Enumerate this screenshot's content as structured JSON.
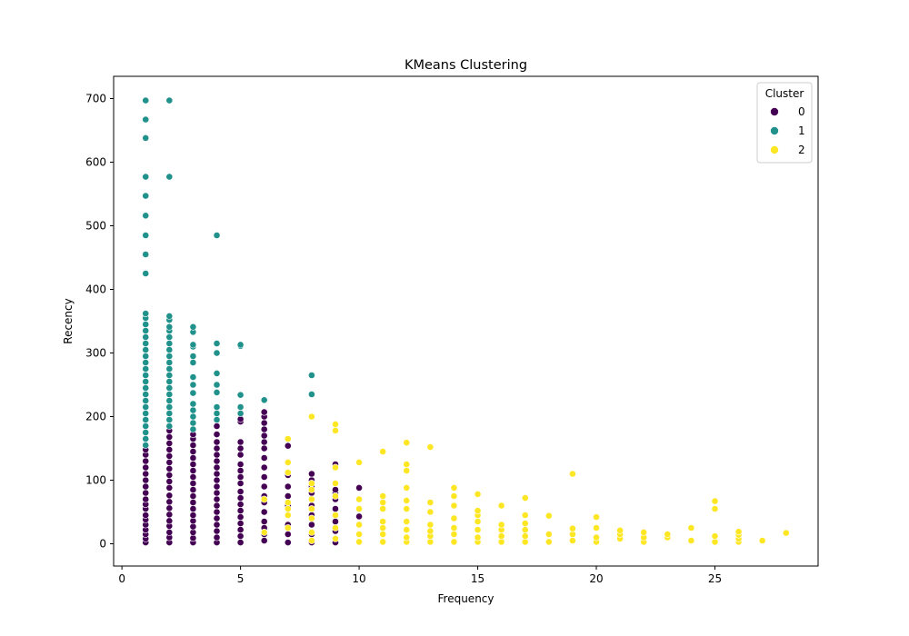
{
  "chart_data": {
    "type": "scatter",
    "title": "KMeans Clustering",
    "xlabel": "Frequency",
    "ylabel": "Recency",
    "xlim": [
      -0.35,
      29.35
    ],
    "ylim": [
      -35,
      735
    ],
    "xticks": [
      0,
      5,
      10,
      15,
      20,
      25
    ],
    "yticks": [
      0,
      100,
      200,
      300,
      400,
      500,
      600,
      700
    ],
    "grid": false,
    "legend": {
      "title": "Cluster",
      "placement": "top-right"
    },
    "series": [
      {
        "name": "0",
        "color": "#440154",
        "points": [
          [
            1,
            2
          ],
          [
            1,
            8
          ],
          [
            1,
            15
          ],
          [
            1,
            22
          ],
          [
            1,
            30
          ],
          [
            1,
            38
          ],
          [
            1,
            45
          ],
          [
            1,
            55
          ],
          [
            1,
            62
          ],
          [
            1,
            70
          ],
          [
            1,
            80
          ],
          [
            1,
            90
          ],
          [
            1,
            100
          ],
          [
            1,
            110
          ],
          [
            1,
            120
          ],
          [
            1,
            130
          ],
          [
            1,
            140
          ],
          [
            1,
            148
          ],
          [
            2,
            2
          ],
          [
            2,
            10
          ],
          [
            2,
            18
          ],
          [
            2,
            28
          ],
          [
            2,
            36
          ],
          [
            2,
            46
          ],
          [
            2,
            56
          ],
          [
            2,
            66
          ],
          [
            2,
            76
          ],
          [
            2,
            88
          ],
          [
            2,
            98
          ],
          [
            2,
            108
          ],
          [
            2,
            118
          ],
          [
            2,
            128
          ],
          [
            2,
            138
          ],
          [
            2,
            148
          ],
          [
            2,
            158
          ],
          [
            2,
            168
          ],
          [
            2,
            178
          ],
          [
            3,
            2
          ],
          [
            3,
            9
          ],
          [
            3,
            18
          ],
          [
            3,
            27
          ],
          [
            3,
            36
          ],
          [
            3,
            45
          ],
          [
            3,
            55
          ],
          [
            3,
            65
          ],
          [
            3,
            75
          ],
          [
            3,
            85
          ],
          [
            3,
            95
          ],
          [
            3,
            105
          ],
          [
            3,
            115
          ],
          [
            3,
            125
          ],
          [
            3,
            135
          ],
          [
            3,
            145
          ],
          [
            3,
            155
          ],
          [
            3,
            165
          ],
          [
            3,
            172
          ],
          [
            4,
            2
          ],
          [
            4,
            10
          ],
          [
            4,
            20
          ],
          [
            4,
            30
          ],
          [
            4,
            40
          ],
          [
            4,
            50
          ],
          [
            4,
            60
          ],
          [
            4,
            70
          ],
          [
            4,
            80
          ],
          [
            4,
            90
          ],
          [
            4,
            100
          ],
          [
            4,
            110
          ],
          [
            4,
            120
          ],
          [
            4,
            130
          ],
          [
            4,
            140
          ],
          [
            4,
            150
          ],
          [
            4,
            160
          ],
          [
            4,
            172
          ],
          [
            4,
            185
          ],
          [
            4,
            195
          ],
          [
            5,
            2
          ],
          [
            5,
            12
          ],
          [
            5,
            22
          ],
          [
            5,
            32
          ],
          [
            5,
            42
          ],
          [
            5,
            52
          ],
          [
            5,
            62
          ],
          [
            5,
            72
          ],
          [
            5,
            82
          ],
          [
            5,
            95
          ],
          [
            5,
            105
          ],
          [
            5,
            115
          ],
          [
            5,
            125
          ],
          [
            5,
            140
          ],
          [
            5,
            150
          ],
          [
            5,
            160
          ],
          [
            5,
            192
          ],
          [
            5,
            196
          ],
          [
            6,
            5
          ],
          [
            6,
            15
          ],
          [
            6,
            25
          ],
          [
            6,
            35
          ],
          [
            6,
            50
          ],
          [
            6,
            65
          ],
          [
            6,
            75
          ],
          [
            6,
            90
          ],
          [
            6,
            105
          ],
          [
            6,
            120
          ],
          [
            6,
            135
          ],
          [
            6,
            150
          ],
          [
            6,
            160
          ],
          [
            6,
            170
          ],
          [
            6,
            180
          ],
          [
            6,
            190
          ],
          [
            6,
            200
          ],
          [
            6,
            207
          ],
          [
            7,
            2
          ],
          [
            7,
            15
          ],
          [
            7,
            30
          ],
          [
            7,
            45
          ],
          [
            7,
            60
          ],
          [
            7,
            75
          ],
          [
            7,
            90
          ],
          [
            7,
            108
          ],
          [
            7,
            154
          ],
          [
            8,
            2
          ],
          [
            8,
            15
          ],
          [
            8,
            30
          ],
          [
            8,
            45
          ],
          [
            8,
            60
          ],
          [
            8,
            80
          ],
          [
            8,
            90
          ],
          [
            8,
            100
          ],
          [
            8,
            110
          ],
          [
            9,
            2
          ],
          [
            9,
            20
          ],
          [
            9,
            35
          ],
          [
            9,
            55
          ],
          [
            9,
            70
          ],
          [
            9,
            80
          ],
          [
            9,
            85
          ],
          [
            9,
            125
          ],
          [
            10,
            43
          ],
          [
            10,
            88
          ]
        ]
      },
      {
        "name": "1",
        "color": "#21918c",
        "points": [
          [
            1,
            155
          ],
          [
            1,
            165
          ],
          [
            1,
            175
          ],
          [
            1,
            185
          ],
          [
            1,
            195
          ],
          [
            1,
            205
          ],
          [
            1,
            215
          ],
          [
            1,
            225
          ],
          [
            1,
            235
          ],
          [
            1,
            245
          ],
          [
            1,
            255
          ],
          [
            1,
            265
          ],
          [
            1,
            275
          ],
          [
            1,
            285
          ],
          [
            1,
            295
          ],
          [
            1,
            305
          ],
          [
            1,
            315
          ],
          [
            1,
            325
          ],
          [
            1,
            335
          ],
          [
            1,
            345
          ],
          [
            1,
            355
          ],
          [
            1,
            362
          ],
          [
            1,
            425
          ],
          [
            1,
            455
          ],
          [
            1,
            485
          ],
          [
            1,
            516
          ],
          [
            1,
            547
          ],
          [
            1,
            577
          ],
          [
            1,
            638
          ],
          [
            1,
            667
          ],
          [
            1,
            697
          ],
          [
            2,
            185
          ],
          [
            2,
            195
          ],
          [
            2,
            205
          ],
          [
            2,
            215
          ],
          [
            2,
            225
          ],
          [
            2,
            235
          ],
          [
            2,
            245
          ],
          [
            2,
            255
          ],
          [
            2,
            265
          ],
          [
            2,
            275
          ],
          [
            2,
            285
          ],
          [
            2,
            295
          ],
          [
            2,
            305
          ],
          [
            2,
            315
          ],
          [
            2,
            325
          ],
          [
            2,
            335
          ],
          [
            2,
            341
          ],
          [
            2,
            352
          ],
          [
            2,
            358
          ],
          [
            2,
            577
          ],
          [
            2,
            697
          ],
          [
            3,
            180
          ],
          [
            3,
            190
          ],
          [
            3,
            200
          ],
          [
            3,
            210
          ],
          [
            3,
            220
          ],
          [
            3,
            237
          ],
          [
            3,
            250
          ],
          [
            3,
            262
          ],
          [
            3,
            285
          ],
          [
            3,
            295
          ],
          [
            3,
            310
          ],
          [
            3,
            313
          ],
          [
            3,
            333
          ],
          [
            3,
            341
          ],
          [
            4,
            195
          ],
          [
            4,
            205
          ],
          [
            4,
            215
          ],
          [
            4,
            238
          ],
          [
            4,
            250
          ],
          [
            4,
            268
          ],
          [
            4,
            300
          ],
          [
            4,
            315
          ],
          [
            4,
            485
          ],
          [
            5,
            205
          ],
          [
            5,
            215
          ],
          [
            5,
            234
          ],
          [
            5,
            311
          ],
          [
            5,
            313
          ],
          [
            6,
            226
          ],
          [
            8,
            235
          ],
          [
            8,
            265
          ]
        ]
      },
      {
        "name": "2",
        "color": "#fde725",
        "points": [
          [
            6,
            18
          ],
          [
            6,
            70
          ],
          [
            7,
            25
          ],
          [
            7,
            45
          ],
          [
            7,
            55
          ],
          [
            7,
            65
          ],
          [
            7,
            112
          ],
          [
            7,
            128
          ],
          [
            7,
            165
          ],
          [
            8,
            5
          ],
          [
            8,
            18
          ],
          [
            8,
            40
          ],
          [
            8,
            55
          ],
          [
            8,
            70
          ],
          [
            8,
            85
          ],
          [
            8,
            95
          ],
          [
            8,
            200
          ],
          [
            9,
            8
          ],
          [
            9,
            25
          ],
          [
            9,
            45
          ],
          [
            9,
            75
          ],
          [
            9,
            95
          ],
          [
            9,
            120
          ],
          [
            9,
            178
          ],
          [
            9,
            188
          ],
          [
            10,
            3
          ],
          [
            10,
            15
          ],
          [
            10,
            30
          ],
          [
            10,
            55
          ],
          [
            10,
            70
          ],
          [
            10,
            128
          ],
          [
            11,
            3
          ],
          [
            11,
            15
          ],
          [
            11,
            25
          ],
          [
            11,
            35
          ],
          [
            11,
            55
          ],
          [
            11,
            65
          ],
          [
            11,
            75
          ],
          [
            11,
            145
          ],
          [
            12,
            3
          ],
          [
            12,
            10
          ],
          [
            12,
            22
          ],
          [
            12,
            35
          ],
          [
            12,
            55
          ],
          [
            12,
            68
          ],
          [
            12,
            88
          ],
          [
            12,
            115
          ],
          [
            12,
            125
          ],
          [
            12,
            159
          ],
          [
            13,
            3
          ],
          [
            13,
            12
          ],
          [
            13,
            20
          ],
          [
            13,
            30
          ],
          [
            13,
            50
          ],
          [
            13,
            65
          ],
          [
            13,
            152
          ],
          [
            14,
            3
          ],
          [
            14,
            15
          ],
          [
            14,
            25
          ],
          [
            14,
            40
          ],
          [
            14,
            60
          ],
          [
            14,
            75
          ],
          [
            14,
            88
          ],
          [
            15,
            3
          ],
          [
            15,
            10
          ],
          [
            15,
            22
          ],
          [
            15,
            35
          ],
          [
            15,
            45
          ],
          [
            15,
            52
          ],
          [
            15,
            78
          ],
          [
            16,
            3
          ],
          [
            16,
            12
          ],
          [
            16,
            22
          ],
          [
            16,
            30
          ],
          [
            16,
            60
          ],
          [
            17,
            3
          ],
          [
            17,
            12
          ],
          [
            17,
            22
          ],
          [
            17,
            32
          ],
          [
            17,
            45
          ],
          [
            17,
            72
          ],
          [
            18,
            3
          ],
          [
            18,
            15
          ],
          [
            18,
            44
          ],
          [
            19,
            5
          ],
          [
            19,
            15
          ],
          [
            19,
            24
          ],
          [
            19,
            110
          ],
          [
            20,
            3
          ],
          [
            20,
            10
          ],
          [
            20,
            25
          ],
          [
            20,
            42
          ],
          [
            21,
            8
          ],
          [
            21,
            15
          ],
          [
            21,
            21
          ],
          [
            22,
            3
          ],
          [
            22,
            10
          ],
          [
            22,
            18
          ],
          [
            23,
            10
          ],
          [
            23,
            15
          ],
          [
            24,
            5
          ],
          [
            24,
            25
          ],
          [
            25,
            3
          ],
          [
            25,
            12
          ],
          [
            25,
            55
          ],
          [
            25,
            67
          ],
          [
            26,
            3
          ],
          [
            26,
            8
          ],
          [
            26,
            14
          ],
          [
            26,
            19
          ],
          [
            27,
            5
          ],
          [
            28,
            17
          ]
        ]
      }
    ]
  }
}
